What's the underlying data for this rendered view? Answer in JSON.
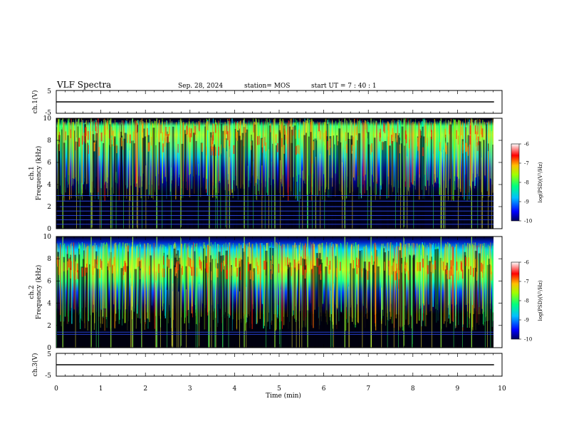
{
  "header": {
    "title": "VLF Spectra",
    "date": "Sep. 28, 2024",
    "station": "station= MOS",
    "start_ut": "start  UT =   7 : 40 : 1"
  },
  "panels": {
    "ch1_waveform": {
      "ylabel": "ch.1(V)",
      "yticks": [
        "5",
        "-5"
      ]
    },
    "ch1_spectrogram": {
      "ylabel": [
        "ch.1",
        "Frequency (kHz)"
      ],
      "yticks": [
        "0",
        "2",
        "4",
        "6",
        "8",
        "10"
      ]
    },
    "ch2_spectrogram": {
      "ylabel": [
        "ch.2",
        "Frequency (kHz)"
      ],
      "yticks": [
        "0",
        "2",
        "4",
        "6",
        "8",
        "10"
      ]
    },
    "ch3_waveform": {
      "ylabel": "ch.3(V)",
      "yticks": [
        "5",
        "-5"
      ]
    }
  },
  "colorbar": {
    "label": "log(PSD)(V²/Hz)",
    "ticks": [
      "-6",
      "-7",
      "-8",
      "-9",
      "-10"
    ],
    "colors": [
      "#000080",
      "#0000ff",
      "#00a0ff",
      "#00ffff",
      "#00ff80",
      "#80ff00",
      "#ffff00",
      "#ff8000",
      "#ff0000",
      "#ffa0a0",
      "#ffffff"
    ]
  },
  "chart_data": [
    {
      "type": "line",
      "title": "",
      "ylabel": "ch.1(V)",
      "xlim": [
        0,
        10
      ],
      "ylim": [
        -5,
        5
      ],
      "x_range_with_data": [
        0,
        9.82
      ],
      "baseline_value": 0,
      "note": "near-flat waveform at ~0 V with small spikes"
    },
    {
      "type": "heatmap",
      "ylabel": "Frequency (kHz)",
      "xlim": [
        0,
        10
      ],
      "ylim": [
        0,
        10
      ],
      "color_scale": "log(PSD)(V²/Hz)",
      "clim": [
        -10,
        -6
      ],
      "dominant_band_khz": [
        5,
        9.5
      ],
      "peak_band_khz": [
        6.5,
        9
      ],
      "horizontal_lines_khz": [
        0.4,
        0.8,
        1.2,
        1.6,
        2.0,
        2.5,
        3.0
      ],
      "sferic_times_min": [
        0.15,
        0.8,
        1.25,
        1.75,
        2.3,
        2.85,
        3.5,
        4.3,
        5.0,
        5.75,
        6.6,
        7.2,
        7.95,
        8.8,
        9.5
      ]
    },
    {
      "type": "heatmap",
      "ylabel": "Frequency (kHz)",
      "xlim": [
        0,
        10
      ],
      "ylim": [
        0,
        10
      ],
      "color_scale": "log(PSD)(V²/Hz)",
      "clim": [
        -10,
        -6
      ],
      "dominant_band_khz": [
        4,
        9
      ],
      "peak_band_khz": [
        6,
        7.5
      ],
      "horizontal_lines_khz": [
        1.2,
        1.4
      ],
      "sferic_times_min": [
        0.15,
        0.8,
        1.25,
        1.75,
        2.3,
        2.85,
        3.5,
        4.3,
        5.0,
        5.75,
        6.6,
        7.2,
        7.95,
        8.8,
        9.5
      ]
    },
    {
      "type": "line",
      "ylabel": "ch.3(V)",
      "xlim": [
        0,
        10
      ],
      "ylim": [
        -5,
        5
      ],
      "x_range_with_data": [
        0,
        9.82
      ],
      "baseline_value": 0,
      "note": "near-flat waveform at ~0 V"
    }
  ],
  "xaxis": {
    "label": "Time (min)",
    "ticks": [
      "0",
      "1",
      "2",
      "3",
      "4",
      "5",
      "6",
      "7",
      "8",
      "9",
      "10"
    ]
  }
}
